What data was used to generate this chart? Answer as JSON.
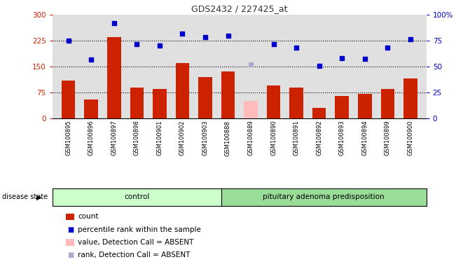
{
  "title": "GDS2432 / 227425_at",
  "samples": [
    "GSM100895",
    "GSM100896",
    "GSM100897",
    "GSM100898",
    "GSM100901",
    "GSM100902",
    "GSM100903",
    "GSM100888",
    "GSM100889",
    "GSM100890",
    "GSM100891",
    "GSM100892",
    "GSM100893",
    "GSM100894",
    "GSM100899",
    "GSM100900"
  ],
  "bar_values": [
    110,
    55,
    235,
    90,
    85,
    160,
    120,
    135,
    50,
    95,
    90,
    30,
    65,
    70,
    85,
    115
  ],
  "bar_absent": [
    false,
    false,
    false,
    false,
    false,
    false,
    false,
    false,
    true,
    false,
    false,
    false,
    false,
    false,
    false,
    false
  ],
  "dot_values": [
    225,
    170,
    275,
    215,
    210,
    245,
    235,
    240,
    157,
    215,
    205,
    152,
    175,
    172,
    205,
    230
  ],
  "dot_absent": [
    false,
    false,
    false,
    false,
    false,
    false,
    false,
    false,
    true,
    false,
    false,
    false,
    false,
    false,
    false,
    false
  ],
  "left_ylim": [
    0,
    300
  ],
  "right_ylim": [
    0,
    100
  ],
  "left_yticks": [
    0,
    75,
    150,
    225,
    300
  ],
  "right_yticks": [
    0,
    25,
    50,
    75,
    100
  ],
  "right_yticklabels": [
    "0",
    "25",
    "50",
    "75",
    "100%"
  ],
  "hlines": [
    75,
    150,
    225
  ],
  "control_count": 7,
  "disease_label_control": "control",
  "disease_label_other": "pituitary adenoma predisposition",
  "disease_state_label": "disease state",
  "legend_items": [
    {
      "label": "count",
      "color": "#cc2200",
      "type": "bar"
    },
    {
      "label": "percentile rank within the sample",
      "color": "#0000cc",
      "type": "dot"
    },
    {
      "label": "value, Detection Call = ABSENT",
      "color": "#ffbbbb",
      "type": "bar"
    },
    {
      "label": "rank, Detection Call = ABSENT",
      "color": "#aaaacc",
      "type": "dot"
    }
  ],
  "bar_color": "#cc2200",
  "bar_absent_color": "#ffbbbb",
  "dot_color": "#0000cc",
  "dot_absent_color": "#aaaacc",
  "plot_bg": "#e0e0e0",
  "disease_bg_control": "#ccffcc",
  "disease_bg_other": "#99dd99",
  "title_color": "#333333",
  "left_axis_color": "#cc2200",
  "right_axis_color": "#0000cc"
}
